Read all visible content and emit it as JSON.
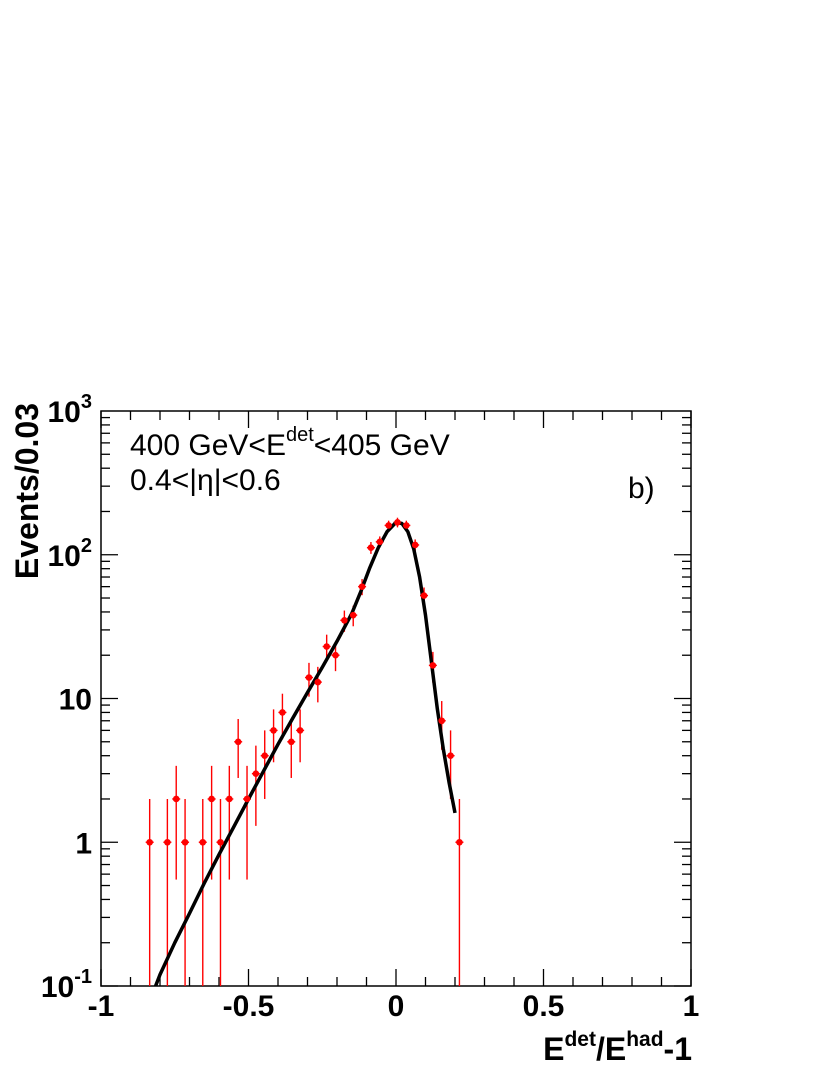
{
  "chart_data": {
    "type": "scatter",
    "xlabel": {
      "base": "E",
      "sup1": "det",
      "mid": "/E",
      "sup2": "had",
      "tail": "-1"
    },
    "ylabel": "Events/0.03",
    "xlim": [
      -1,
      1
    ],
    "ylim": [
      0.1,
      1000
    ],
    "yscale": "log",
    "grid": false,
    "x_ticks": [
      {
        "value": -1,
        "label": "-1"
      },
      {
        "value": -0.5,
        "label": "-0.5"
      },
      {
        "value": 0,
        "label": "0"
      },
      {
        "value": 0.5,
        "label": "0.5"
      },
      {
        "value": 1,
        "label": "1"
      }
    ],
    "y_ticks": [
      {
        "value": 0.1,
        "base": "10",
        "exp": "-1"
      },
      {
        "value": 1,
        "base": "1",
        "exp": ""
      },
      {
        "value": 10,
        "base": "10",
        "exp": ""
      },
      {
        "value": 100,
        "base": "10",
        "exp": "2"
      },
      {
        "value": 1000,
        "base": "10",
        "exp": "3"
      }
    ],
    "annotations": {
      "energy_range": {
        "pre": "400 GeV<E",
        "sup": "det",
        "post": "<405 GeV"
      },
      "eta_range": "0.4<|η|<0.6",
      "panel": "b)"
    },
    "series": [
      {
        "type": "points",
        "color": "#ff0000",
        "points": [
          {
            "x": -0.835,
            "y": 1,
            "lo": 0,
            "hi": 2.0
          },
          {
            "x": -0.775,
            "y": 1,
            "lo": 0,
            "hi": 2.0
          },
          {
            "x": -0.745,
            "y": 2,
            "lo": 0.55,
            "hi": 3.4
          },
          {
            "x": -0.715,
            "y": 1,
            "lo": 0,
            "hi": 2.0
          },
          {
            "x": -0.655,
            "y": 1,
            "lo": 0,
            "hi": 2.0
          },
          {
            "x": -0.625,
            "y": 2,
            "lo": 0.55,
            "hi": 3.4
          },
          {
            "x": -0.595,
            "y": 1,
            "lo": 0,
            "hi": 2.0
          },
          {
            "x": -0.565,
            "y": 2,
            "lo": 0.55,
            "hi": 3.4
          },
          {
            "x": -0.535,
            "y": 5,
            "lo": 2.8,
            "hi": 7.2
          },
          {
            "x": -0.505,
            "y": 2,
            "lo": 0.55,
            "hi": 3.4
          },
          {
            "x": -0.475,
            "y": 3,
            "lo": 1.3,
            "hi": 4.7
          },
          {
            "x": -0.445,
            "y": 4,
            "lo": 2.0,
            "hi": 6.0
          },
          {
            "x": -0.415,
            "y": 6,
            "lo": 3.6,
            "hi": 8.4
          },
          {
            "x": -0.385,
            "y": 8,
            "lo": 5.2,
            "hi": 10.8
          },
          {
            "x": -0.355,
            "y": 5,
            "lo": 2.8,
            "hi": 7.2
          },
          {
            "x": -0.325,
            "y": 6,
            "lo": 3.6,
            "hi": 8.4
          },
          {
            "x": -0.295,
            "y": 14,
            "lo": 10.3,
            "hi": 17.7
          },
          {
            "x": -0.265,
            "y": 13,
            "lo": 9.4,
            "hi": 16.6
          },
          {
            "x": -0.235,
            "y": 23,
            "lo": 18.2,
            "hi": 27.8
          },
          {
            "x": -0.205,
            "y": 20,
            "lo": 15.5,
            "hi": 24.5
          },
          {
            "x": -0.175,
            "y": 35,
            "lo": 29.1,
            "hi": 40.9
          },
          {
            "x": -0.145,
            "y": 38,
            "lo": 31.8,
            "hi": 44.2
          },
          {
            "x": -0.115,
            "y": 60,
            "lo": 52.3,
            "hi": 67.7
          },
          {
            "x": -0.085,
            "y": 112,
            "lo": 101.4,
            "hi": 122.6
          },
          {
            "x": -0.055,
            "y": 123,
            "lo": 111.9,
            "hi": 134.1
          },
          {
            "x": -0.025,
            "y": 160,
            "lo": 147.4,
            "hi": 172.6
          },
          {
            "x": 0.005,
            "y": 168,
            "lo": 155.0,
            "hi": 181.0
          },
          {
            "x": 0.035,
            "y": 160,
            "lo": 147.4,
            "hi": 172.6
          },
          {
            "x": 0.065,
            "y": 117,
            "lo": 106.2,
            "hi": 127.8
          },
          {
            "x": 0.095,
            "y": 52,
            "lo": 44.8,
            "hi": 59.2
          },
          {
            "x": 0.125,
            "y": 17,
            "lo": 12.9,
            "hi": 21.1
          },
          {
            "x": 0.155,
            "y": 7,
            "lo": 4.4,
            "hi": 9.6
          },
          {
            "x": 0.185,
            "y": 4,
            "lo": 2.0,
            "hi": 6.0
          },
          {
            "x": 0.215,
            "y": 1,
            "lo": 0,
            "hi": 2.0
          }
        ]
      },
      {
        "type": "line",
        "color": "#000000",
        "points": [
          {
            "x": -0.815,
            "y": 0.1
          },
          {
            "x": -0.8,
            "y": 0.12
          },
          {
            "x": -0.75,
            "y": 0.2
          },
          {
            "x": -0.7,
            "y": 0.32
          },
          {
            "x": -0.65,
            "y": 0.52
          },
          {
            "x": -0.6,
            "y": 0.82
          },
          {
            "x": -0.55,
            "y": 1.28
          },
          {
            "x": -0.5,
            "y": 2.0
          },
          {
            "x": -0.45,
            "y": 3.1
          },
          {
            "x": -0.4,
            "y": 4.8
          },
          {
            "x": -0.35,
            "y": 7.3
          },
          {
            "x": -0.3,
            "y": 11.0
          },
          {
            "x": -0.25,
            "y": 16.5
          },
          {
            "x": -0.2,
            "y": 25.0
          },
          {
            "x": -0.15,
            "y": 39.0
          },
          {
            "x": -0.12,
            "y": 55.0
          },
          {
            "x": -0.09,
            "y": 80.0
          },
          {
            "x": -0.06,
            "y": 112.0
          },
          {
            "x": -0.03,
            "y": 145.0
          },
          {
            "x": 0.0,
            "y": 168.0
          },
          {
            "x": 0.02,
            "y": 165.0
          },
          {
            "x": 0.04,
            "y": 145.0
          },
          {
            "x": 0.06,
            "y": 110.0
          },
          {
            "x": 0.08,
            "y": 70.0
          },
          {
            "x": 0.1,
            "y": 38.0
          },
          {
            "x": 0.12,
            "y": 18.0
          },
          {
            "x": 0.14,
            "y": 8.5
          },
          {
            "x": 0.16,
            "y": 4.5
          },
          {
            "x": 0.18,
            "y": 2.6
          },
          {
            "x": 0.2,
            "y": 1.6
          }
        ]
      }
    ]
  }
}
